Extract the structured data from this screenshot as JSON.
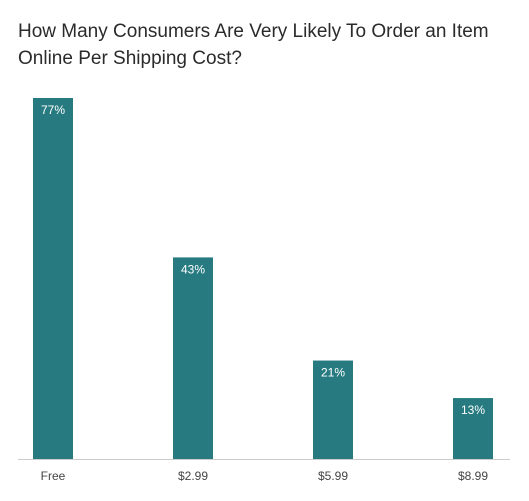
{
  "chart_data": {
    "type": "bar",
    "title": "How Many Consumers Are Very Likely To Order an Item Online Per Shipping Cost?",
    "categories": [
      "Free",
      "$2.99",
      "$5.99",
      "$8.99"
    ],
    "values": [
      77,
      43,
      21,
      13
    ],
    "value_labels": [
      "77%",
      "43%",
      "21%",
      "13%"
    ],
    "unit": "%",
    "ylim": [
      0,
      77
    ],
    "grid": false,
    "legend": "none",
    "bar_color": "#277b80",
    "axis_color": "#cccccc"
  }
}
